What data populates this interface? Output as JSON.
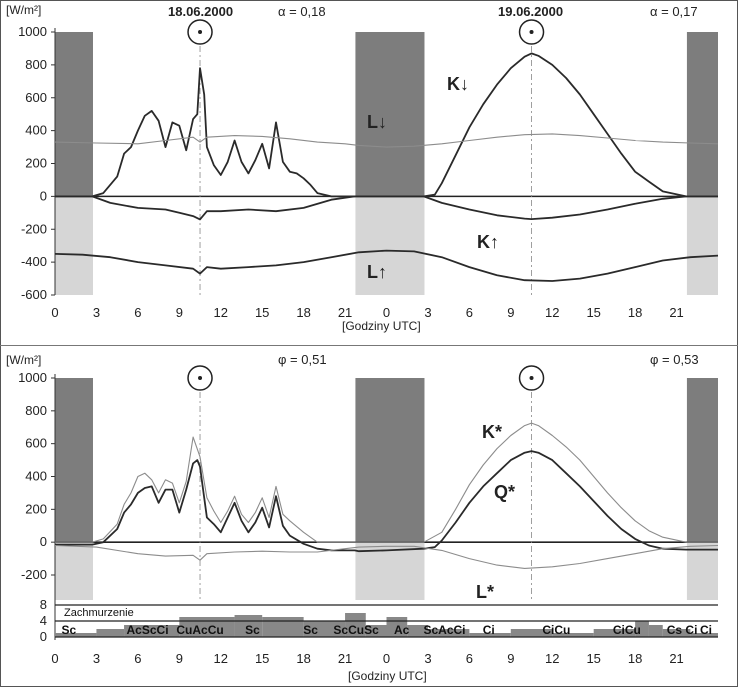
{
  "colors": {
    "night_dark": "#7d7d7d",
    "night_light": "#d6d6d6",
    "line_dark": "#2a2a2a",
    "line_light": "#8c8c8c",
    "cloud_fill": "#888888",
    "cloud_band": "#5a5a5a",
    "sun_icon": "sun-icon"
  },
  "chart_data": [
    {
      "type": "line",
      "panel": "top",
      "y_unit_label": "[W/m²]",
      "xlabel": "[Godziny UTC]",
      "x_tick_labels": [
        "0",
        "3",
        "6",
        "9",
        "12",
        "15",
        "18",
        "21",
        "0",
        "3",
        "6",
        "9",
        "12",
        "15",
        "18",
        "21"
      ],
      "ylim": [
        -600,
        1000
      ],
      "y_ticks": [
        1000,
        800,
        600,
        400,
        200,
        0,
        -200,
        -400,
        -600
      ],
      "days": [
        {
          "date": "18.06.2000",
          "albedo": "α = 0,18"
        },
        {
          "date": "19.06.2000",
          "albedo": "α = 0,17"
        }
      ],
      "x_range_hours": [
        0,
        48
      ],
      "night_hours": [
        [
          0,
          2.75
        ],
        [
          21.75,
          26.75
        ],
        [
          45.75,
          48
        ]
      ],
      "solar_noon_hours": [
        10.5,
        34.5
      ],
      "series": [
        {
          "name": "K↓",
          "style": "dark",
          "x": [
            0,
            2.7,
            3.5,
            4.5,
            5,
            5.5,
            6,
            6.5,
            7,
            7.5,
            8,
            8.5,
            9,
            9.5,
            10,
            10.3,
            10.5,
            10.8,
            11,
            11.5,
            12,
            12.5,
            13,
            13.5,
            14,
            14.5,
            15,
            15.5,
            16,
            16.5,
            17,
            17.5,
            18,
            18.5,
            19,
            20,
            21.7,
            26.7,
            27.5,
            28,
            29,
            30,
            31,
            32,
            33,
            34,
            34.5,
            35,
            36,
            37,
            38,
            39,
            40,
            41,
            42,
            42.5,
            43,
            44,
            45.7,
            48
          ],
          "y": [
            0,
            0,
            20,
            120,
            260,
            300,
            400,
            490,
            520,
            460,
            300,
            450,
            430,
            280,
            470,
            500,
            780,
            620,
            300,
            190,
            130,
            210,
            340,
            210,
            140,
            220,
            320,
            170,
            450,
            210,
            150,
            140,
            110,
            70,
            20,
            0,
            0,
            0,
            10,
            80,
            250,
            420,
            560,
            680,
            780,
            850,
            870,
            855,
            800,
            720,
            620,
            500,
            380,
            260,
            150,
            120,
            90,
            30,
            0,
            0
          ]
        },
        {
          "name": "L↓",
          "style": "light",
          "x": [
            0,
            3,
            6,
            8,
            10,
            10.5,
            11,
            13,
            15,
            17,
            19,
            21,
            22,
            24,
            26,
            28,
            30,
            32,
            34,
            36,
            38,
            40,
            42,
            44,
            46,
            48
          ],
          "y": [
            330,
            325,
            320,
            340,
            360,
            330,
            360,
            370,
            365,
            350,
            330,
            320,
            310,
            300,
            305,
            320,
            340,
            360,
            375,
            380,
            370,
            355,
            340,
            330,
            325,
            320
          ]
        },
        {
          "name": "K↑",
          "style": "dark",
          "x": [
            0,
            2.7,
            4,
            6,
            8,
            9,
            10,
            10.5,
            11,
            12,
            14,
            16,
            18,
            20,
            21.7,
            26.7,
            28,
            30,
            32,
            34,
            34.5,
            36,
            38,
            40,
            42,
            44,
            45.7,
            48
          ],
          "y": [
            0,
            0,
            -40,
            -70,
            -80,
            -100,
            -120,
            -140,
            -90,
            -90,
            -80,
            -90,
            -70,
            -20,
            0,
            0,
            -40,
            -80,
            -115,
            -135,
            -138,
            -130,
            -110,
            -80,
            -45,
            -15,
            0,
            0
          ]
        },
        {
          "name": "L↑",
          "style": "dark",
          "x": [
            0,
            2,
            4,
            6,
            8,
            10,
            10.5,
            11,
            12,
            14,
            16,
            18,
            20,
            22,
            24,
            26,
            28,
            30,
            32,
            34,
            36,
            38,
            40,
            42,
            44,
            46,
            48
          ],
          "y": [
            -350,
            -355,
            -370,
            -400,
            -420,
            -440,
            -470,
            -430,
            -440,
            -430,
            -420,
            -400,
            -370,
            -340,
            -330,
            -335,
            -370,
            -430,
            -480,
            -510,
            -515,
            -500,
            -470,
            -430,
            -390,
            -370,
            -360
          ]
        }
      ],
      "annotations": [
        {
          "text": "K↓"
        },
        {
          "text": "L↓"
        },
        {
          "text": "K↑"
        },
        {
          "text": "L↑"
        }
      ]
    },
    {
      "type": "line",
      "panel": "bottom",
      "y_unit_label": "[W/m²]",
      "xlabel": "[Godziny UTC]",
      "x_tick_labels": [
        "0",
        "3",
        "6",
        "9",
        "12",
        "15",
        "18",
        "21",
        "0",
        "3",
        "6",
        "9",
        "12",
        "15",
        "18",
        "21"
      ],
      "ylim": [
        -200,
        1000
      ],
      "y_ticks": [
        1000,
        800,
        600,
        400,
        200,
        0,
        -200
      ],
      "days": [
        {
          "param": "φ = 0,51"
        },
        {
          "param": "φ = 0,53"
        }
      ],
      "x_range_hours": [
        0,
        48
      ],
      "night_hours": [
        [
          0,
          2.75
        ],
        [
          21.75,
          26.75
        ],
        [
          45.75,
          48
        ]
      ],
      "solar_noon_hours": [
        10.5,
        34.5
      ],
      "series": [
        {
          "name": "K*",
          "style": "light",
          "x": [
            0,
            2.7,
            3.5,
            4.5,
            5,
            5.5,
            6,
            6.5,
            7,
            7.5,
            8,
            8.5,
            9,
            9.5,
            10,
            10.5,
            11,
            11.5,
            12,
            12.5,
            13,
            13.5,
            14,
            14.5,
            15,
            15.5,
            16,
            16.5,
            17,
            18,
            19,
            21.7,
            26.7,
            28,
            29,
            30,
            31,
            32,
            33,
            34,
            34.5,
            35,
            36,
            37,
            38,
            39,
            40,
            41,
            42,
            43,
            44,
            45.7,
            48
          ],
          "y": [
            0,
            0,
            20,
            110,
            230,
            300,
            400,
            420,
            380,
            300,
            380,
            360,
            240,
            370,
            640,
            520,
            270,
            190,
            120,
            190,
            280,
            170,
            120,
            180,
            270,
            150,
            340,
            170,
            130,
            60,
            0,
            0,
            0,
            60,
            200,
            350,
            470,
            570,
            650,
            710,
            725,
            710,
            650,
            580,
            500,
            400,
            300,
            210,
            130,
            70,
            30,
            0,
            0
          ]
        },
        {
          "name": "Q*",
          "style": "dark",
          "x": [
            0,
            2.7,
            3.5,
            4.5,
            5,
            5.5,
            6,
            6.5,
            7,
            7.5,
            8,
            8.5,
            9,
            9.5,
            10,
            10.3,
            10.5,
            10.8,
            11,
            11.5,
            12,
            12.5,
            13,
            13.5,
            14,
            14.5,
            15,
            15.5,
            16,
            16.5,
            17,
            18,
            19,
            20,
            21.7,
            22,
            24,
            26.7,
            27.5,
            28,
            29,
            30,
            31,
            32,
            33,
            34,
            34.5,
            35,
            36,
            37,
            38,
            39,
            40,
            41,
            42,
            43,
            44,
            45.7,
            48
          ],
          "y": [
            -15,
            -15,
            0,
            80,
            180,
            230,
            300,
            330,
            340,
            240,
            320,
            320,
            180,
            320,
            480,
            500,
            460,
            270,
            150,
            110,
            60,
            150,
            240,
            130,
            60,
            120,
            210,
            90,
            280,
            100,
            40,
            -10,
            -40,
            -50,
            -50,
            -55,
            -50,
            -40,
            -30,
            10,
            120,
            240,
            340,
            420,
            500,
            545,
            555,
            545,
            500,
            420,
            340,
            250,
            160,
            80,
            20,
            -20,
            -40,
            -45,
            -45
          ]
        },
        {
          "name": "L*",
          "style": "light",
          "x": [
            0,
            3,
            6,
            8,
            10,
            10.5,
            11,
            13,
            15,
            17,
            19,
            21,
            22,
            24,
            26,
            28,
            30,
            32,
            34,
            36,
            38,
            40,
            42,
            44,
            46,
            48
          ],
          "y": [
            -20,
            -30,
            -70,
            -85,
            -80,
            -110,
            -70,
            -60,
            -55,
            -60,
            -60,
            -40,
            -30,
            -25,
            -25,
            -50,
            -100,
            -140,
            -160,
            -150,
            -130,
            -100,
            -70,
            -40,
            -25,
            -20
          ]
        }
      ],
      "annotations": [
        {
          "text": "K*"
        },
        {
          "text": "Q*"
        },
        {
          "text": "L*"
        }
      ]
    }
  ],
  "cloud_panel": {
    "title": "Zachmurzenie",
    "y_ticks": [
      "8",
      "4",
      "0"
    ],
    "y_range": [
      0,
      8
    ],
    "cover": [
      {
        "x0": 0,
        "x1": 3,
        "v": 1
      },
      {
        "x0": 3,
        "x1": 5,
        "v": 2
      },
      {
        "x0": 5,
        "x1": 9,
        "v": 3
      },
      {
        "x0": 9,
        "x1": 13,
        "v": 5
      },
      {
        "x0": 13,
        "x1": 15,
        "v": 5.5
      },
      {
        "x0": 15,
        "x1": 18,
        "v": 5
      },
      {
        "x0": 18,
        "x1": 21,
        "v": 4
      },
      {
        "x0": 21,
        "x1": 22.5,
        "v": 6
      },
      {
        "x0": 22.5,
        "x1": 24,
        "v": 3
      },
      {
        "x0": 24,
        "x1": 25.5,
        "v": 5
      },
      {
        "x0": 25.5,
        "x1": 27,
        "v": 3
      },
      {
        "x0": 27,
        "x1": 30,
        "v": 2
      },
      {
        "x0": 30,
        "x1": 33,
        "v": 1
      },
      {
        "x0": 33,
        "x1": 36,
        "v": 2
      },
      {
        "x0": 36,
        "x1": 39,
        "v": 1
      },
      {
        "x0": 39,
        "x1": 42,
        "v": 2
      },
      {
        "x0": 42,
        "x1": 43,
        "v": 4
      },
      {
        "x0": 43,
        "x1": 44,
        "v": 3
      },
      {
        "x0": 44,
        "x1": 46,
        "v": 2
      },
      {
        "x0": 46,
        "x1": 48,
        "v": 1
      }
    ],
    "labels": [
      {
        "text": "Sc",
        "x": 1
      },
      {
        "text": "AcScCi",
        "x": 6.7
      },
      {
        "text": "CuAcCu",
        "x": 10.5
      },
      {
        "text": "Sc",
        "x": 14.3
      },
      {
        "text": "Sc",
        "x": 18.5
      },
      {
        "text": "ScCuSc",
        "x": 21.8
      },
      {
        "text": "Ac",
        "x": 25.1
      },
      {
        "text": "ScAcCi",
        "x": 28.2
      },
      {
        "text": "Ci",
        "x": 31.4
      },
      {
        "text": "CiCu",
        "x": 36.3
      },
      {
        "text": "CiCu",
        "x": 41.4
      },
      {
        "text": "Cs Ci",
        "x": 45.4
      },
      {
        "text": "Ci",
        "x": 50.2
      }
    ]
  }
}
